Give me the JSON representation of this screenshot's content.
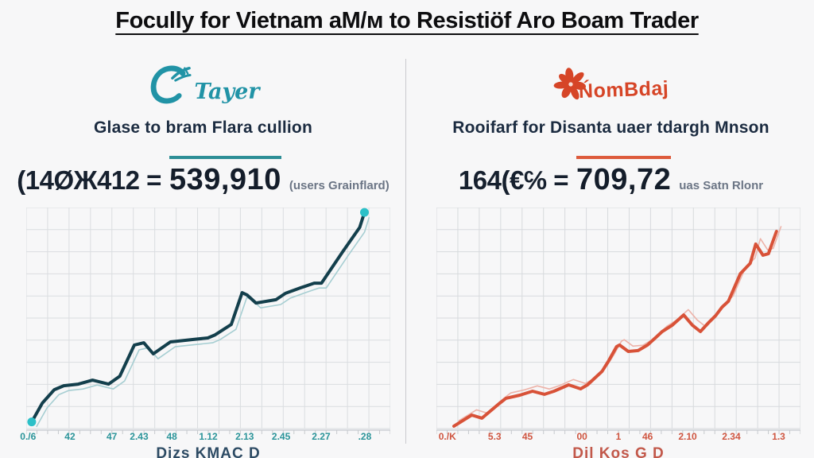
{
  "header": {
    "title": "Focully for Vietnam aM/м to Resistiöf Aro Boam Trader"
  },
  "left": {
    "logo_text": "Tayer",
    "logo_color": "#2193a6",
    "subtitle": "Glase to bram Flara cullion",
    "formula": {
      "prefix": "(14ØЖ412 =",
      "value": "539,910",
      "suffix": "(users Grainflard)",
      "accent": "#2d8e96"
    },
    "caption": "Dizs KMAC D"
  },
  "right": {
    "logo_text": "ŃomBdaj",
    "logo_color": "#d64527",
    "subtitle": "Rooifarf for Disanta uaer tdargh Mnson",
    "formula": {
      "prefix": "164(€℅ =",
      "value": "709,72",
      "suffix": "uas Satn Rlonr",
      "accent": "#dd5b3c"
    },
    "caption": "Dil Kos G D"
  },
  "chart_data": [
    {
      "type": "line",
      "title": "Glase to bram Flara cullion",
      "xlabel": "Dizs KMAC D",
      "ylabel": "",
      "ylim": [
        0,
        100
      ],
      "grid": {
        "on": true,
        "cols": 17,
        "rows": 10,
        "color": "#dadde0"
      },
      "axis_color": "#c6c9cd",
      "legend": "none",
      "x_ticks": {
        "labels": [
          "0./6",
          "42",
          "47",
          "2.43",
          "48",
          "1.12",
          "2.13",
          "2.45",
          "2.27",
          ".28"
        ],
        "pos": [
          0.5,
          12,
          23.5,
          31,
          40,
          50,
          60,
          70,
          81,
          93
        ]
      },
      "series": [
        {
          "name": "main",
          "color": "#133f4c",
          "width": 4,
          "points": [
            [
              1.5,
              3
            ],
            [
              4.4,
              11.5
            ],
            [
              7.7,
              17.6
            ],
            [
              10.3,
              19.4
            ],
            [
              14.3,
              20.1
            ],
            [
              18.2,
              21.9
            ],
            [
              22.6,
              20.1
            ],
            [
              25.7,
              23.7
            ],
            [
              29.7,
              37.8
            ],
            [
              32.3,
              38.8
            ],
            [
              34.9,
              33.8
            ],
            [
              39.6,
              39.2
            ],
            [
              45.7,
              40.3
            ],
            [
              49.9,
              41
            ],
            [
              51.9,
              42.4
            ],
            [
              56.3,
              47.1
            ],
            [
              59.3,
              61.5
            ],
            [
              60.7,
              60.4
            ],
            [
              63.1,
              56.8
            ],
            [
              68.6,
              58.3
            ],
            [
              71.2,
              61.2
            ],
            [
              75.4,
              63.7
            ],
            [
              79.1,
              65.8
            ],
            [
              81.1,
              65.8
            ],
            [
              87,
              80.2
            ],
            [
              91.6,
              91
            ],
            [
              92.9,
              97.8
            ]
          ]
        },
        {
          "name": "shadow",
          "color": "#a6ced2",
          "width": 1.6,
          "offset": [
            1.3,
            -2.2
          ]
        }
      ],
      "endpoints": {
        "show": true,
        "color": "#2cc0c8",
        "radius": 5.5
      }
    },
    {
      "type": "line",
      "title": "Rooifarf for Disanta uaer tdargh Mnson",
      "xlabel": "Dil Kos G D",
      "ylabel": "",
      "ylim": [
        0,
        100
      ],
      "grid": {
        "on": true,
        "cols": 17,
        "rows": 10,
        "color": "#d7dadd"
      },
      "axis_color": "#c6c9cd",
      "legend": "none",
      "x_ticks": {
        "labels": [
          "0./K",
          "5.3",
          "45",
          "00",
          "1",
          "46",
          "2.10",
          "2.34",
          "1.3"
        ],
        "pos": [
          3,
          16,
          25,
          40,
          50,
          58,
          69,
          81,
          94
        ]
      },
      "series": [
        {
          "name": "main",
          "color": "#d85238",
          "width": 4,
          "points": [
            [
              4.8,
              1.1
            ],
            [
              9.7,
              6.1
            ],
            [
              12.5,
              4.7
            ],
            [
              17.4,
              11.5
            ],
            [
              19.1,
              13.7
            ],
            [
              22.9,
              15.1
            ],
            [
              26.4,
              16.9
            ],
            [
              29.7,
              15.5
            ],
            [
              32.3,
              16.9
            ],
            [
              36.3,
              19.8
            ],
            [
              39.6,
              18
            ],
            [
              41.5,
              19.8
            ],
            [
              45.5,
              25.9
            ],
            [
              47.3,
              30.6
            ],
            [
              49.5,
              37.1
            ],
            [
              50.3,
              37.8
            ],
            [
              52.7,
              34.9
            ],
            [
              55.4,
              35.3
            ],
            [
              58,
              37.8
            ],
            [
              60.4,
              41.4
            ],
            [
              62,
              43.9
            ],
            [
              64.8,
              46.8
            ],
            [
              67.9,
              51.4
            ],
            [
              70.3,
              46.8
            ],
            [
              72.5,
              43.9
            ],
            [
              74.7,
              47.8
            ],
            [
              76.7,
              51.1
            ],
            [
              78.5,
              55
            ],
            [
              80.2,
              57.6
            ],
            [
              83.5,
              70.1
            ],
            [
              86.2,
              74.8
            ],
            [
              87.7,
              83.5
            ],
            [
              89.7,
              78.4
            ],
            [
              91.2,
              79.1
            ],
            [
              93.4,
              89.2
            ]
          ]
        },
        {
          "name": "shadow",
          "color": "#edb3a9",
          "width": 1.6,
          "offset": [
            1.3,
            2.4
          ]
        }
      ],
      "endpoints": {
        "show": false,
        "color": "#d85238",
        "radius": 5
      }
    }
  ]
}
